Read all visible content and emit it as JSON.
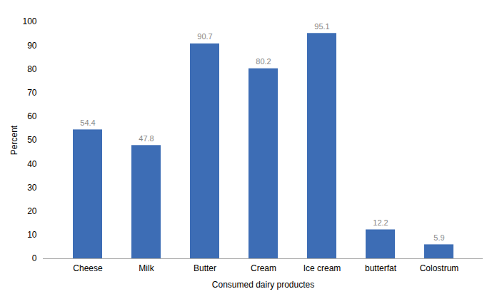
{
  "chart_data": {
    "type": "bar",
    "categories": [
      "Cheese",
      "Milk",
      "Butter",
      "Cream",
      "Ice cream",
      "butterfat",
      "Colostrum"
    ],
    "values": [
      54.4,
      47.8,
      90.7,
      80.2,
      95.1,
      12.2,
      5.9
    ],
    "color": "#3D6DB5",
    "xlabel": "Consumed dairy productes",
    "ylabel": "Percent",
    "ylim": [
      0,
      100
    ],
    "yticks": [
      0,
      10,
      20,
      30,
      40,
      50,
      60,
      70,
      80,
      90,
      100
    ],
    "grid": false,
    "data_labels": true
  }
}
